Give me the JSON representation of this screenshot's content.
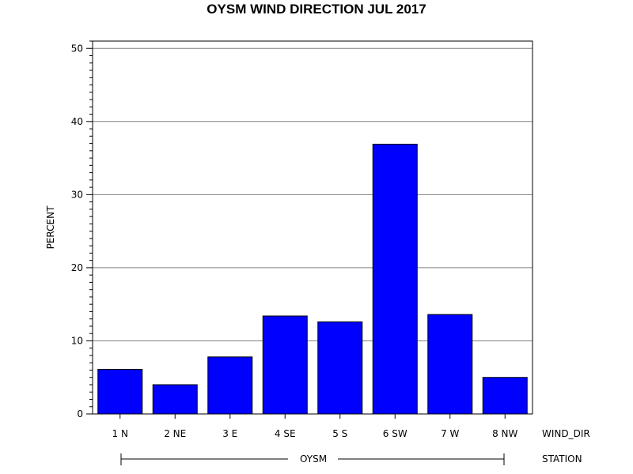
{
  "chart_data": {
    "type": "bar",
    "title": "OYSM WIND DIRECTION JUL 2017",
    "ylabel": "PERCENT",
    "xlabel": "WIND_DIR",
    "group_axis_label": "STATION",
    "group_label": "OYSM",
    "categories": [
      "1 N",
      "2 NE",
      "3 E",
      "4 SE",
      "5 S",
      "6 SW",
      "7 W",
      "8 NW"
    ],
    "values": [
      6.1,
      4.0,
      7.8,
      13.4,
      12.6,
      36.9,
      13.6,
      5.0
    ],
    "ylim": [
      0,
      51
    ],
    "yticks": [
      0,
      10,
      20,
      30,
      40,
      50
    ],
    "grid": true,
    "bar_color": "#0000ff"
  }
}
